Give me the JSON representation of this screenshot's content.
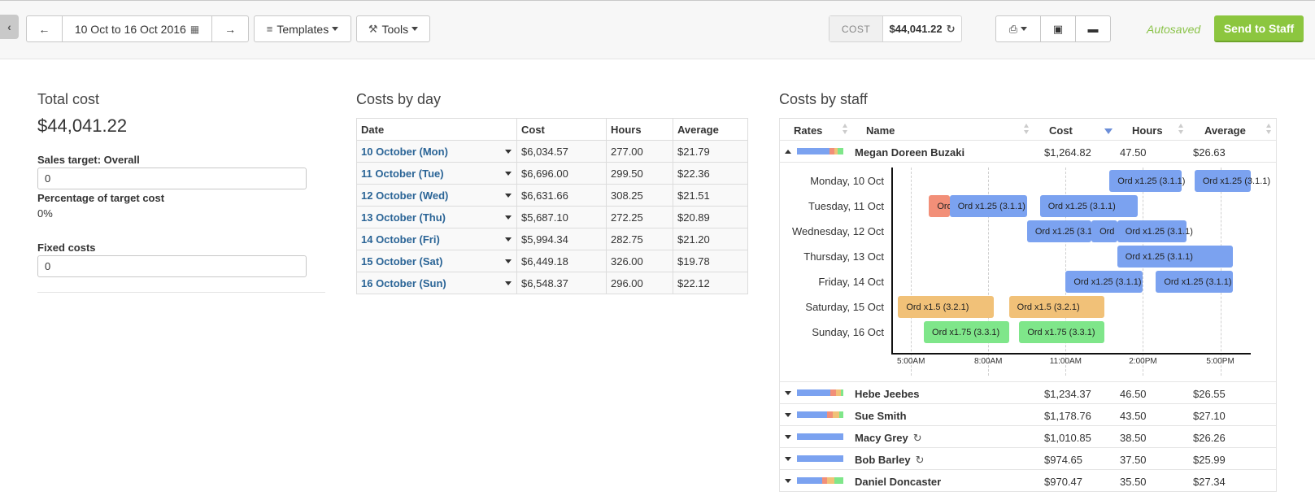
{
  "toolbar": {
    "date_range": "10 Oct to 16 Oct 2016",
    "templates_label": "Templates",
    "tools_label": "Tools",
    "cost_label": "COST",
    "cost_value": "$44,041.22",
    "autosaved": "Autosaved",
    "send_label": "Send to Staff"
  },
  "total": {
    "title": "Total cost",
    "amount": "$44,041.22",
    "sales_target_label": "Sales target: Overall",
    "sales_target_value": "0",
    "pct_label": "Percentage of target cost",
    "pct_value": "0%",
    "fixed_label": "Fixed costs",
    "fixed_value": "0"
  },
  "by_day": {
    "title": "Costs by day",
    "headers": [
      "Date",
      "Cost",
      "Hours",
      "Average"
    ],
    "rows": [
      [
        "10 October (Mon)",
        "$6,034.57",
        "277.00",
        "$21.79"
      ],
      [
        "11 October (Tue)",
        "$6,696.00",
        "299.50",
        "$22.36"
      ],
      [
        "12 October (Wed)",
        "$6,631.66",
        "308.25",
        "$21.51"
      ],
      [
        "13 October (Thu)",
        "$5,687.10",
        "272.25",
        "$20.89"
      ],
      [
        "14 October (Fri)",
        "$5,994.34",
        "282.75",
        "$21.20"
      ],
      [
        "15 October (Sat)",
        "$6,449.18",
        "326.00",
        "$19.78"
      ],
      [
        "16 October (Sun)",
        "$6,548.37",
        "296.00",
        "$22.12"
      ]
    ]
  },
  "by_staff": {
    "title": "Costs by staff",
    "headers": [
      "Rates",
      "Name",
      "Cost",
      "Hours",
      "Average"
    ],
    "staff": [
      {
        "name": "Megan Doreen Buzaki",
        "cost": "$1,264.82",
        "hours": "47.50",
        "avg": "$26.63",
        "rates": [
          0.7,
          0.1,
          0.08,
          0.12
        ]
      },
      {
        "name": "Hebe Jeebes",
        "cost": "$1,234.37",
        "hours": "46.50",
        "avg": "$26.55",
        "rates": [
          0.72,
          0.12,
          0.1,
          0.06
        ]
      },
      {
        "name": "Sue Smith",
        "cost": "$1,178.76",
        "hours": "43.50",
        "avg": "$27.10",
        "rates": [
          0.65,
          0.13,
          0.14,
          0.08
        ]
      },
      {
        "name": "Macy Grey",
        "cost": "$1,010.85",
        "hours": "38.50",
        "avg": "$26.26",
        "rates": [
          1,
          0,
          0,
          0
        ]
      },
      {
        "name": "Bob Barley",
        "cost": "$974.65",
        "hours": "37.50",
        "avg": "$25.99",
        "rates": [
          1,
          0,
          0,
          0
        ]
      },
      {
        "name": "Daniel Doncaster",
        "cost": "$970.47",
        "hours": "35.50",
        "avg": "$27.34",
        "rates": [
          0.55,
          0.1,
          0.15,
          0.2
        ]
      }
    ],
    "rate_colors": [
      "#7ba2f0",
      "#f28f78",
      "#f1c178",
      "#7fe68a"
    ],
    "timeline": {
      "days": [
        "Monday, 10 Oct",
        "Tuesday, 11 Oct",
        "Wednesday, 12 Oct",
        "Thursday, 13 Oct",
        "Friday, 14 Oct",
        "Saturday, 15 Oct",
        "Sunday, 16 Oct"
      ],
      "ticks": [
        "5:00AM",
        "8:00AM",
        "11:00AM",
        "2:00PM",
        "5:00PM"
      ],
      "shifts": [
        {
          "day": 0,
          "start": 12.7,
          "end": 15.5,
          "label": "Ord x1.25 (3.1.1)",
          "color": "blue"
        },
        {
          "day": 0,
          "start": 16.0,
          "end": 18.8,
          "label": "Ord x1.25 (3.1.1)",
          "color": "blue"
        },
        {
          "day": 1,
          "start": 5.7,
          "end": 6.5,
          "label": "Ord",
          "color": "red"
        },
        {
          "day": 1,
          "start": 6.5,
          "end": 9.5,
          "label": "Ord x1.25 (3.1.1)",
          "color": "blue"
        },
        {
          "day": 1,
          "start": 10.0,
          "end": 13.8,
          "label": "Ord x1.25 (3.1.1)",
          "color": "blue"
        },
        {
          "day": 2,
          "start": 9.5,
          "end": 12.0,
          "label": "Ord x1.25 (3.1",
          "color": "blue"
        },
        {
          "day": 2,
          "start": 12.0,
          "end": 13.0,
          "label": "Ord :",
          "color": "blue"
        },
        {
          "day": 2,
          "start": 13.0,
          "end": 15.7,
          "label": "Ord x1.25 (3.1.1)",
          "color": "blue"
        },
        {
          "day": 3,
          "start": 13.0,
          "end": 17.5,
          "label": "Ord x1.25 (3.1.1)",
          "color": "blue"
        },
        {
          "day": 4,
          "start": 11.0,
          "end": 14.0,
          "label": "Ord x1.25 (3.1.1)",
          "color": "blue"
        },
        {
          "day": 4,
          "start": 14.5,
          "end": 17.5,
          "label": "Ord x1.25 (3.1.1)",
          "color": "blue"
        },
        {
          "day": 5,
          "start": 4.5,
          "end": 8.2,
          "label": "Ord x1.5 (3.2.1)",
          "color": "orange"
        },
        {
          "day": 5,
          "start": 8.8,
          "end": 12.5,
          "label": "Ord x1.5 (3.2.1)",
          "color": "orange"
        },
        {
          "day": 6,
          "start": 5.5,
          "end": 8.8,
          "label": "Ord x1.75 (3.3.1)",
          "color": "green"
        },
        {
          "day": 6,
          "start": 9.2,
          "end": 12.5,
          "label": "Ord x1.75 (3.3.1)",
          "color": "green"
        }
      ]
    }
  }
}
